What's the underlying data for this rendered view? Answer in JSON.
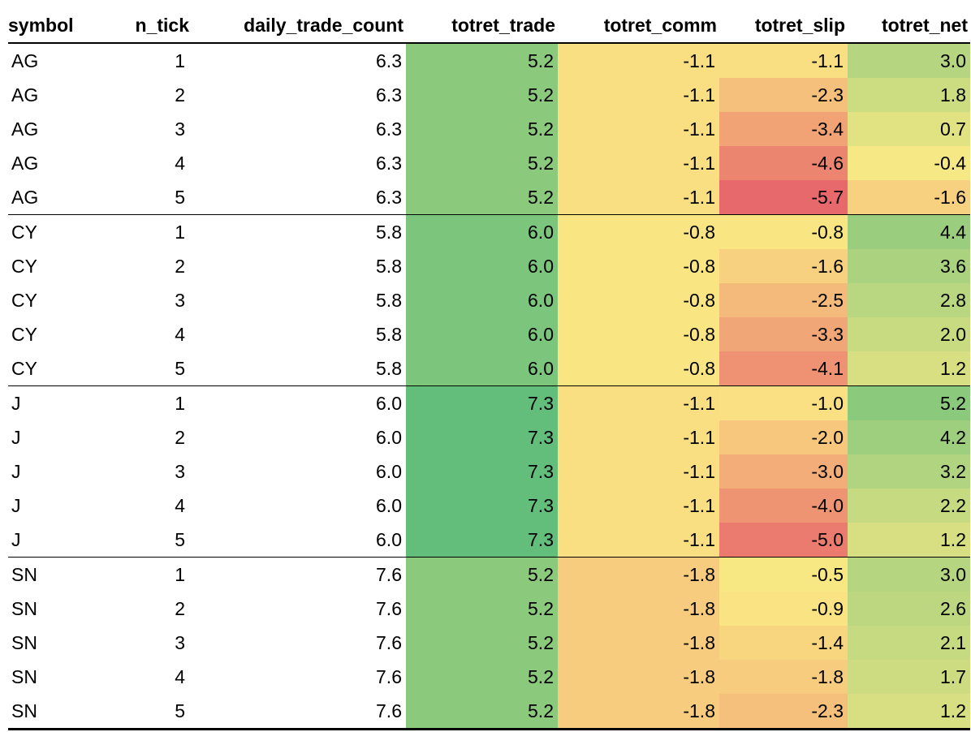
{
  "chart_data": {
    "type": "table",
    "columns": [
      "symbol",
      "n_tick",
      "daily_trade_count",
      "totret_trade",
      "totret_comm",
      "totret_slip",
      "totret_net"
    ],
    "rows": [
      {
        "symbol": "AG",
        "n_tick": "1",
        "daily_trade_count": "6.3",
        "totret_trade": "5.2",
        "totret_comm": "-1.1",
        "totret_slip": "-1.1",
        "totret_net": "3.0"
      },
      {
        "symbol": "AG",
        "n_tick": "2",
        "daily_trade_count": "6.3",
        "totret_trade": "5.2",
        "totret_comm": "-1.1",
        "totret_slip": "-2.3",
        "totret_net": "1.8"
      },
      {
        "symbol": "AG",
        "n_tick": "3",
        "daily_trade_count": "6.3",
        "totret_trade": "5.2",
        "totret_comm": "-1.1",
        "totret_slip": "-3.4",
        "totret_net": "0.7"
      },
      {
        "symbol": "AG",
        "n_tick": "4",
        "daily_trade_count": "6.3",
        "totret_trade": "5.2",
        "totret_comm": "-1.1",
        "totret_slip": "-4.6",
        "totret_net": "-0.4"
      },
      {
        "symbol": "AG",
        "n_tick": "5",
        "daily_trade_count": "6.3",
        "totret_trade": "5.2",
        "totret_comm": "-1.1",
        "totret_slip": "-5.7",
        "totret_net": "-1.6"
      },
      {
        "symbol": "CY",
        "n_tick": "1",
        "daily_trade_count": "5.8",
        "totret_trade": "6.0",
        "totret_comm": "-0.8",
        "totret_slip": "-0.8",
        "totret_net": "4.4"
      },
      {
        "symbol": "CY",
        "n_tick": "2",
        "daily_trade_count": "5.8",
        "totret_trade": "6.0",
        "totret_comm": "-0.8",
        "totret_slip": "-1.6",
        "totret_net": "3.6"
      },
      {
        "symbol": "CY",
        "n_tick": "3",
        "daily_trade_count": "5.8",
        "totret_trade": "6.0",
        "totret_comm": "-0.8",
        "totret_slip": "-2.5",
        "totret_net": "2.8"
      },
      {
        "symbol": "CY",
        "n_tick": "4",
        "daily_trade_count": "5.8",
        "totret_trade": "6.0",
        "totret_comm": "-0.8",
        "totret_slip": "-3.3",
        "totret_net": "2.0"
      },
      {
        "symbol": "CY",
        "n_tick": "5",
        "daily_trade_count": "5.8",
        "totret_trade": "6.0",
        "totret_comm": "-0.8",
        "totret_slip": "-4.1",
        "totret_net": "1.2"
      },
      {
        "symbol": "J",
        "n_tick": "1",
        "daily_trade_count": "6.0",
        "totret_trade": "7.3",
        "totret_comm": "-1.1",
        "totret_slip": "-1.0",
        "totret_net": "5.2"
      },
      {
        "symbol": "J",
        "n_tick": "2",
        "daily_trade_count": "6.0",
        "totret_trade": "7.3",
        "totret_comm": "-1.1",
        "totret_slip": "-2.0",
        "totret_net": "4.2"
      },
      {
        "symbol": "J",
        "n_tick": "3",
        "daily_trade_count": "6.0",
        "totret_trade": "7.3",
        "totret_comm": "-1.1",
        "totret_slip": "-3.0",
        "totret_net": "3.2"
      },
      {
        "symbol": "J",
        "n_tick": "4",
        "daily_trade_count": "6.0",
        "totret_trade": "7.3",
        "totret_comm": "-1.1",
        "totret_slip": "-4.0",
        "totret_net": "2.2"
      },
      {
        "symbol": "J",
        "n_tick": "5",
        "daily_trade_count": "6.0",
        "totret_trade": "7.3",
        "totret_comm": "-1.1",
        "totret_slip": "-5.0",
        "totret_net": "1.2"
      },
      {
        "symbol": "SN",
        "n_tick": "1",
        "daily_trade_count": "7.6",
        "totret_trade": "5.2",
        "totret_comm": "-1.8",
        "totret_slip": "-0.5",
        "totret_net": "3.0"
      },
      {
        "symbol": "SN",
        "n_tick": "2",
        "daily_trade_count": "7.6",
        "totret_trade": "5.2",
        "totret_comm": "-1.8",
        "totret_slip": "-0.9",
        "totret_net": "2.6"
      },
      {
        "symbol": "SN",
        "n_tick": "3",
        "daily_trade_count": "7.6",
        "totret_trade": "5.2",
        "totret_comm": "-1.8",
        "totret_slip": "-1.4",
        "totret_net": "2.1"
      },
      {
        "symbol": "SN",
        "n_tick": "4",
        "daily_trade_count": "7.6",
        "totret_trade": "5.2",
        "totret_comm": "-1.8",
        "totret_slip": "-1.8",
        "totret_net": "1.7"
      },
      {
        "symbol": "SN",
        "n_tick": "5",
        "daily_trade_count": "7.6",
        "totret_trade": "5.2",
        "totret_comm": "-1.8",
        "totret_slip": "-2.3",
        "totret_net": "1.2"
      }
    ],
    "heatmap_columns": [
      "totret_trade",
      "totret_comm",
      "totret_slip",
      "totret_net"
    ],
    "heatmap_scale": {
      "low_color": "#e8696b",
      "mid_color": "#fbe984",
      "high_color": "#63be7b",
      "range": [
        -5.7,
        7.3
      ],
      "midpoint_percentile": 50
    },
    "group_column": "symbol"
  }
}
